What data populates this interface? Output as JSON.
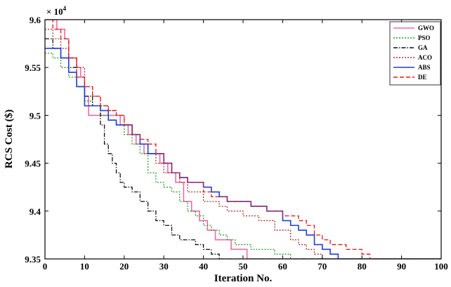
{
  "chart_data": {
    "type": "line",
    "title": "",
    "xlabel": "Iteration No.",
    "ylabel": "RCS Cost ($)",
    "exponent_label": "× 10",
    "exponent_power": "4",
    "xlim": [
      0,
      100
    ],
    "ylim": [
      9.35,
      9.6
    ],
    "xticks": [
      "0",
      "10",
      "20",
      "30",
      "40",
      "50",
      "60",
      "70",
      "80",
      "90",
      "100"
    ],
    "yticks": [
      "9.35",
      "9.4",
      "9.45",
      "9.5",
      "9.55",
      "9.6"
    ],
    "grid": false,
    "legend_position": "top-right",
    "series": [
      {
        "name": "GWO",
        "color": "#f06aa6",
        "dash": "solid",
        "points": [
          [
            0,
            9.6
          ],
          [
            2,
            9.6
          ],
          [
            3,
            9.59
          ],
          [
            5,
            9.58
          ],
          [
            6,
            9.56
          ],
          [
            8,
            9.55
          ],
          [
            9,
            9.54
          ],
          [
            10,
            9.52
          ],
          [
            11,
            9.5
          ],
          [
            13,
            9.5
          ],
          [
            15,
            9.5
          ],
          [
            17,
            9.5
          ],
          [
            19,
            9.49
          ],
          [
            21,
            9.48
          ],
          [
            23,
            9.47
          ],
          [
            25,
            9.46
          ],
          [
            27,
            9.46
          ],
          [
            29,
            9.45
          ],
          [
            31,
            9.44
          ],
          [
            33,
            9.43
          ],
          [
            35,
            9.41
          ],
          [
            37,
            9.4
          ],
          [
            39,
            9.39
          ],
          [
            41,
            9.38
          ],
          [
            43,
            9.37
          ],
          [
            45,
            9.37
          ],
          [
            47,
            9.36
          ],
          [
            49,
            9.36
          ],
          [
            51,
            9.35
          ],
          [
            100,
            9.35
          ]
        ]
      },
      {
        "name": "PSO",
        "color": "#2a9a2a",
        "dash": "dot",
        "points": [
          [
            0,
            9.565
          ],
          [
            2,
            9.56
          ],
          [
            4,
            9.55
          ],
          [
            6,
            9.54
          ],
          [
            8,
            9.53
          ],
          [
            10,
            9.515
          ],
          [
            12,
            9.51
          ],
          [
            14,
            9.5
          ],
          [
            16,
            9.495
          ],
          [
            18,
            9.49
          ],
          [
            20,
            9.48
          ],
          [
            22,
            9.47
          ],
          [
            24,
            9.46
          ],
          [
            26,
            9.44
          ],
          [
            28,
            9.43
          ],
          [
            30,
            9.425
          ],
          [
            32,
            9.42
          ],
          [
            34,
            9.41
          ],
          [
            36,
            9.4
          ],
          [
            38,
            9.395
          ],
          [
            40,
            9.385
          ],
          [
            42,
            9.38
          ],
          [
            44,
            9.375
          ],
          [
            46,
            9.37
          ],
          [
            48,
            9.365
          ],
          [
            52,
            9.36
          ],
          [
            56,
            9.36
          ],
          [
            58,
            9.355
          ],
          [
            62,
            9.35
          ],
          [
            100,
            9.35
          ]
        ]
      },
      {
        "name": "GA",
        "color": "#111111",
        "dash": "dashdot",
        "points": [
          [
            0,
            9.58
          ],
          [
            2,
            9.57
          ],
          [
            4,
            9.56
          ],
          [
            6,
            9.55
          ],
          [
            8,
            9.53
          ],
          [
            10,
            9.52
          ],
          [
            12,
            9.51
          ],
          [
            14,
            9.49
          ],
          [
            15,
            9.47
          ],
          [
            16,
            9.46
          ],
          [
            17,
            9.45
          ],
          [
            18,
            9.44
          ],
          [
            19,
            9.43
          ],
          [
            20,
            9.425
          ],
          [
            22,
            9.42
          ],
          [
            24,
            9.41
          ],
          [
            26,
            9.4
          ],
          [
            28,
            9.39
          ],
          [
            30,
            9.385
          ],
          [
            32,
            9.375
          ],
          [
            34,
            9.37
          ],
          [
            36,
            9.37
          ],
          [
            38,
            9.365
          ],
          [
            40,
            9.36
          ],
          [
            42,
            9.355
          ],
          [
            44,
            9.35
          ],
          [
            100,
            9.35
          ]
        ]
      },
      {
        "name": "ACO",
        "color": "#a83030",
        "dash": "dot",
        "points": [
          [
            0,
            9.59
          ],
          [
            2,
            9.58
          ],
          [
            4,
            9.57
          ],
          [
            6,
            9.56
          ],
          [
            8,
            9.55
          ],
          [
            10,
            9.53
          ],
          [
            12,
            9.52
          ],
          [
            14,
            9.51
          ],
          [
            16,
            9.505
          ],
          [
            18,
            9.5
          ],
          [
            20,
            9.49
          ],
          [
            22,
            9.48
          ],
          [
            24,
            9.47
          ],
          [
            26,
            9.46
          ],
          [
            28,
            9.45
          ],
          [
            30,
            9.44
          ],
          [
            32,
            9.44
          ],
          [
            34,
            9.43
          ],
          [
            36,
            9.42
          ],
          [
            38,
            9.42
          ],
          [
            40,
            9.41
          ],
          [
            42,
            9.41
          ],
          [
            44,
            9.405
          ],
          [
            46,
            9.4
          ],
          [
            48,
            9.4
          ],
          [
            50,
            9.395
          ],
          [
            54,
            9.39
          ],
          [
            58,
            9.38
          ],
          [
            62,
            9.37
          ],
          [
            64,
            9.365
          ],
          [
            66,
            9.36
          ],
          [
            68,
            9.355
          ],
          [
            70,
            9.35
          ],
          [
            100,
            9.35
          ]
        ]
      },
      {
        "name": "ABS",
        "color": "#1f3fdc",
        "dash": "solid",
        "points": [
          [
            0,
            9.57
          ],
          [
            2,
            9.57
          ],
          [
            4,
            9.56
          ],
          [
            6,
            9.545
          ],
          [
            8,
            9.53
          ],
          [
            10,
            9.51
          ],
          [
            12,
            9.51
          ],
          [
            14,
            9.505
          ],
          [
            16,
            9.495
          ],
          [
            18,
            9.49
          ],
          [
            20,
            9.49
          ],
          [
            22,
            9.48
          ],
          [
            24,
            9.47
          ],
          [
            26,
            9.46
          ],
          [
            28,
            9.46
          ],
          [
            30,
            9.45
          ],
          [
            32,
            9.44
          ],
          [
            34,
            9.435
          ],
          [
            36,
            9.43
          ],
          [
            38,
            9.43
          ],
          [
            40,
            9.425
          ],
          [
            42,
            9.42
          ],
          [
            44,
            9.415
          ],
          [
            46,
            9.41
          ],
          [
            48,
            9.41
          ],
          [
            52,
            9.405
          ],
          [
            56,
            9.4
          ],
          [
            60,
            9.39
          ],
          [
            62,
            9.385
          ],
          [
            64,
            9.38
          ],
          [
            66,
            9.375
          ],
          [
            68,
            9.365
          ],
          [
            70,
            9.36
          ],
          [
            72,
            9.355
          ],
          [
            74,
            9.35
          ],
          [
            100,
            9.35
          ]
        ]
      },
      {
        "name": "DE",
        "color": "#e01818",
        "dash": "dash",
        "points": [
          [
            0,
            9.6
          ],
          [
            2,
            9.59
          ],
          [
            4,
            9.58
          ],
          [
            6,
            9.56
          ],
          [
            8,
            9.54
          ],
          [
            10,
            9.53
          ],
          [
            12,
            9.52
          ],
          [
            14,
            9.51
          ],
          [
            16,
            9.505
          ],
          [
            18,
            9.5
          ],
          [
            20,
            9.49
          ],
          [
            22,
            9.48
          ],
          [
            24,
            9.475
          ],
          [
            26,
            9.47
          ],
          [
            28,
            9.46
          ],
          [
            30,
            9.45
          ],
          [
            32,
            9.44
          ],
          [
            34,
            9.435
          ],
          [
            36,
            9.43
          ],
          [
            38,
            9.43
          ],
          [
            40,
            9.42
          ],
          [
            42,
            9.415
          ],
          [
            44,
            9.415
          ],
          [
            46,
            9.41
          ],
          [
            48,
            9.41
          ],
          [
            52,
            9.405
          ],
          [
            56,
            9.4
          ],
          [
            60,
            9.395
          ],
          [
            64,
            9.39
          ],
          [
            66,
            9.385
          ],
          [
            68,
            9.375
          ],
          [
            70,
            9.37
          ],
          [
            72,
            9.365
          ],
          [
            76,
            9.36
          ],
          [
            80,
            9.355
          ],
          [
            82,
            9.35
          ],
          [
            100,
            9.35
          ]
        ]
      }
    ]
  }
}
